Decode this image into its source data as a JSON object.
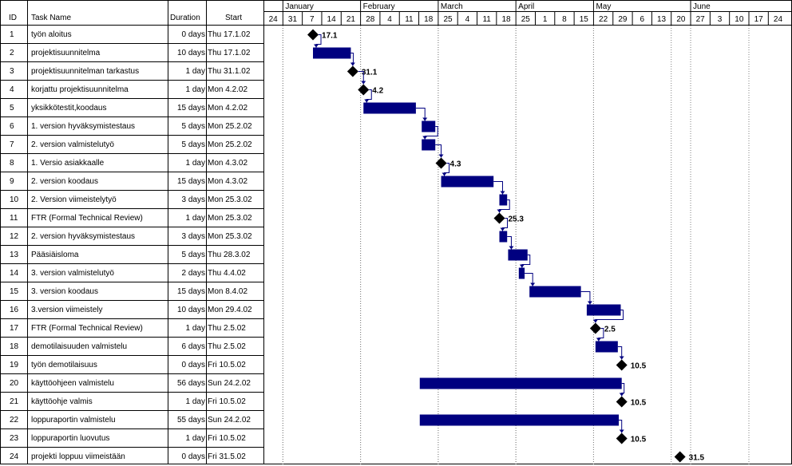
{
  "table": {
    "headers": {
      "id": "ID",
      "name": "Task Name",
      "duration": "Duration",
      "start": "Start"
    },
    "rows": [
      {
        "id": "1",
        "name": "työn aloitus",
        "duration": "0 days",
        "start": "Thu 17.1.02"
      },
      {
        "id": "2",
        "name": "projektisuunnitelma",
        "duration": "10 days",
        "start": "Thu 17.1.02"
      },
      {
        "id": "3",
        "name": "projektisuunnitelman tarkastus",
        "duration": "1 day",
        "start": "Thu 31.1.02"
      },
      {
        "id": "4",
        "name": "korjattu projektisuunnitelma",
        "duration": "1 day",
        "start": "Mon 4.2.02"
      },
      {
        "id": "5",
        "name": "yksikkötestit,koodaus",
        "duration": "15 days",
        "start": "Mon 4.2.02"
      },
      {
        "id": "6",
        "name": "1. version hyväksymistestaus",
        "duration": "5 days",
        "start": "Mon 25.2.02"
      },
      {
        "id": "7",
        "name": "2. version valmistelutyö",
        "duration": "5 days",
        "start": "Mon 25.2.02"
      },
      {
        "id": "8",
        "name": "1. Versio asiakkaalle",
        "duration": "1 day",
        "start": "Mon 4.3.02"
      },
      {
        "id": "9",
        "name": "2. version koodaus",
        "duration": "15 days",
        "start": "Mon 4.3.02"
      },
      {
        "id": "10",
        "name": "2. Version viimeistelytyö",
        "duration": "3 days",
        "start": "Mon 25.3.02"
      },
      {
        "id": "11",
        "name": "FTR (Formal Technical Review)",
        "duration": "1 day",
        "start": "Mon 25.3.02"
      },
      {
        "id": "12",
        "name": "2. version hyväksymistestaus",
        "duration": "3 days",
        "start": "Mon 25.3.02"
      },
      {
        "id": "13",
        "name": "Pääsiäisloma",
        "duration": "5 days",
        "start": "Thu 28.3.02"
      },
      {
        "id": "14",
        "name": "3. version valmistelutyö",
        "duration": "2 days",
        "start": "Thu 4.4.02"
      },
      {
        "id": "15",
        "name": "3. version koodaus",
        "duration": "15 days",
        "start": "Mon 8.4.02"
      },
      {
        "id": "16",
        "name": "3.version viimeistely",
        "duration": "10 days",
        "start": "Mon 29.4.02"
      },
      {
        "id": "17",
        "name": "FTR (Formal Technical Review)",
        "duration": "1 day",
        "start": "Thu 2.5.02"
      },
      {
        "id": "18",
        "name": "demotilaisuuden valmistelu",
        "duration": "6 days",
        "start": "Thu 2.5.02"
      },
      {
        "id": "19",
        "name": "työn demotilaisuus",
        "duration": "0 days",
        "start": "Fri 10.5.02"
      },
      {
        "id": "20",
        "name": "käyttöohjeen valmistelu",
        "duration": "56 days",
        "start": "Sun 24.2.02"
      },
      {
        "id": "21",
        "name": "käyttöohje valmis",
        "duration": "1 day",
        "start": "Fri 10.5.02"
      },
      {
        "id": "22",
        "name": "loppuraportin valmistelu",
        "duration": "55 days",
        "start": "Sun 24.2.02"
      },
      {
        "id": "23",
        "name": "loppuraportin luovutus",
        "duration": "1 day",
        "start": "Fri 10.5.02"
      },
      {
        "id": "24",
        "name": "projekti loppuu viimeistään",
        "duration": "0 days",
        "start": "Fri 31.5.02"
      }
    ]
  },
  "timescale": {
    "months": [
      {
        "label": "",
        "start_week": 0
      },
      {
        "label": "January",
        "start_week": 1
      },
      {
        "label": "February",
        "start_week": 5
      },
      {
        "label": "March",
        "start_week": 9
      },
      {
        "label": "April",
        "start_week": 13
      },
      {
        "label": "May",
        "start_week": 17
      },
      {
        "label": "June",
        "start_week": 22
      }
    ],
    "weeks": [
      "24",
      "31",
      "7",
      "14",
      "21",
      "28",
      "4",
      "11",
      "18",
      "25",
      "4",
      "11",
      "18",
      "25",
      "1",
      "8",
      "15",
      "22",
      "29",
      "6",
      "13",
      "20",
      "27",
      "3",
      "10",
      "17",
      "24"
    ]
  },
  "bars": [
    {
      "row": 1,
      "type": "milestone",
      "start": 23.55,
      "label": "17.1"
    },
    {
      "row": 2,
      "type": "task",
      "start": 23.55,
      "end": 25.5
    },
    {
      "row": 3,
      "type": "milestone",
      "start": 25.6,
      "label": "31.1"
    },
    {
      "row": 4,
      "type": "milestone",
      "start": 26.15,
      "label": "4.2"
    },
    {
      "row": 5,
      "type": "task",
      "start": 26.15,
      "end": 28.85
    },
    {
      "row": 6,
      "type": "task",
      "start": 29.15,
      "end": 29.85
    },
    {
      "row": 7,
      "type": "task",
      "start": 29.15,
      "end": 29.85
    },
    {
      "row": 8,
      "type": "milestone",
      "start": 30.15,
      "label": "4.3"
    },
    {
      "row": 9,
      "type": "task",
      "start": 30.15,
      "end": 32.85
    },
    {
      "row": 10,
      "type": "task",
      "start": 33.15,
      "end": 33.55
    },
    {
      "row": 11,
      "type": "milestone",
      "start": 33.15,
      "label": "25.3"
    },
    {
      "row": 12,
      "type": "task",
      "start": 33.15,
      "end": 33.55
    },
    {
      "row": 13,
      "type": "task",
      "start": 33.6,
      "end": 34.6
    },
    {
      "row": 14,
      "type": "task",
      "start": 34.15,
      "end": 34.45
    },
    {
      "row": 15,
      "type": "task",
      "start": 34.7,
      "end": 37.35
    },
    {
      "row": 16,
      "type": "task",
      "start": 37.65,
      "end": 39.4
    },
    {
      "row": 17,
      "type": "milestone",
      "start": 38.1,
      "label": "2.5"
    },
    {
      "row": 18,
      "type": "task",
      "start": 38.1,
      "end": 39.25
    },
    {
      "row": 19,
      "type": "milestone",
      "start": 39.45,
      "label": "10.5"
    },
    {
      "row": 20,
      "type": "task",
      "start": 29.05,
      "end": 39.45
    },
    {
      "row": 21,
      "type": "milestone",
      "start": 39.45,
      "label": "10.5"
    },
    {
      "row": 22,
      "type": "task",
      "start": 29.05,
      "end": 39.3
    },
    {
      "row": 23,
      "type": "milestone",
      "start": 39.45,
      "label": "10.5"
    },
    {
      "row": 24,
      "type": "milestone",
      "start": 42.45,
      "label": "31.5"
    }
  ],
  "links": [
    [
      1,
      2
    ],
    [
      2,
      3
    ],
    [
      3,
      4
    ],
    [
      4,
      5
    ],
    [
      5,
      6
    ],
    [
      6,
      7
    ],
    [
      7,
      8
    ],
    [
      8,
      9
    ],
    [
      9,
      10
    ],
    [
      10,
      11
    ],
    [
      11,
      12
    ],
    [
      12,
      13
    ],
    [
      13,
      14
    ],
    [
      14,
      15
    ],
    [
      15,
      16
    ],
    [
      16,
      17
    ],
    [
      17,
      18
    ],
    [
      18,
      19
    ],
    [
      20,
      21
    ],
    [
      22,
      23
    ]
  ],
  "colors": {
    "bar": "#000080",
    "milestone": "#000000",
    "grid": "#000000",
    "dotted": "#808080"
  }
}
